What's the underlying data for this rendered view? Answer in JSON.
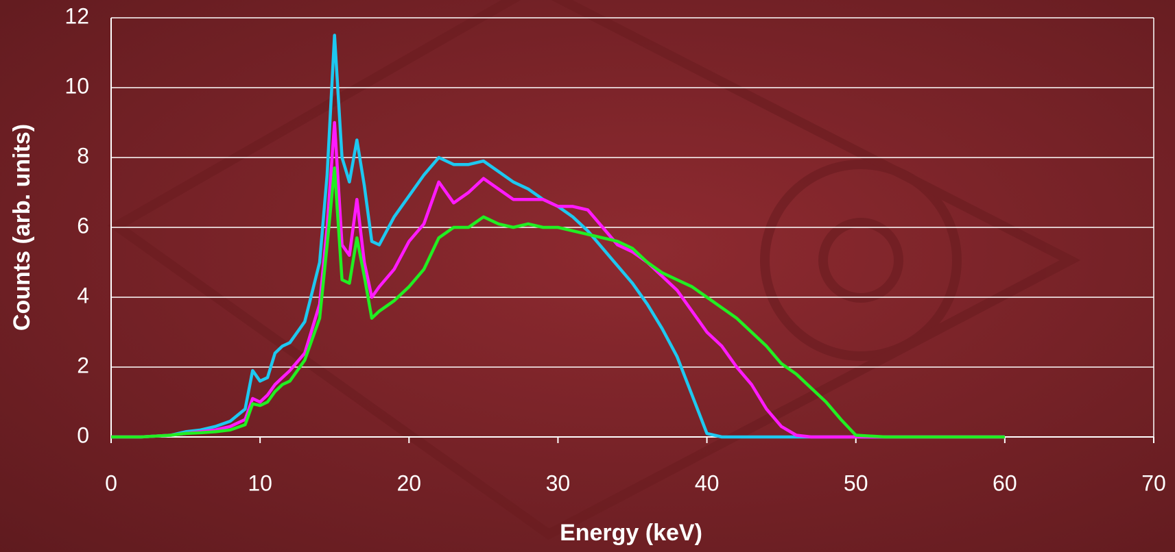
{
  "chart_data": {
    "type": "line",
    "xlabel": "Energy (keV)",
    "ylabel": "Counts (arb. units)",
    "x": [
      0,
      2,
      4,
      5,
      6,
      7,
      8,
      9,
      9.5,
      10,
      10.5,
      11,
      11.5,
      12,
      13,
      14,
      14.5,
      15,
      15.5,
      16,
      16.5,
      17,
      17.5,
      18,
      19,
      20,
      21,
      22,
      23,
      24,
      25,
      26,
      27,
      28,
      29,
      30,
      31,
      32,
      33,
      34,
      35,
      36,
      37,
      38,
      39,
      40,
      41,
      42,
      43,
      44,
      45,
      46,
      47,
      48,
      49,
      50,
      52,
      55,
      60
    ],
    "series": [
      {
        "color": "#1ec8f0",
        "values": [
          0,
          0,
          0.05,
          0.15,
          0.2,
          0.3,
          0.45,
          0.8,
          1.9,
          1.6,
          1.7,
          2.4,
          2.6,
          2.7,
          3.3,
          5,
          7.5,
          11.5,
          8,
          7.3,
          8.5,
          7.2,
          5.6,
          5.5,
          6.3,
          6.9,
          7.5,
          8.0,
          7.8,
          7.8,
          7.9,
          7.6,
          7.3,
          7.1,
          6.8,
          6.6,
          6.3,
          5.9,
          5.4,
          4.9,
          4.4,
          3.8,
          3.1,
          2.3,
          1.2,
          0.1,
          0,
          0,
          0,
          0,
          0,
          0,
          0,
          0,
          0,
          0,
          0,
          0,
          0
        ]
      },
      {
        "color": "#ff1aff",
        "values": [
          0,
          0,
          0.05,
          0.1,
          0.15,
          0.2,
          0.3,
          0.5,
          1.1,
          1.0,
          1.2,
          1.5,
          1.7,
          1.9,
          2.4,
          3.8,
          6,
          9,
          5.5,
          5.2,
          6.8,
          5,
          4,
          4.3,
          4.8,
          5.6,
          6.1,
          7.3,
          6.7,
          7.0,
          7.4,
          7.1,
          6.8,
          6.8,
          6.8,
          6.6,
          6.6,
          6.5,
          6.0,
          5.5,
          5.3,
          5.0,
          4.6,
          4.2,
          3.6,
          3.0,
          2.6,
          2.0,
          1.5,
          0.8,
          0.3,
          0.05,
          0,
          0,
          0,
          0,
          0,
          0,
          0
        ]
      },
      {
        "color": "#22ee22",
        "values": [
          0,
          0,
          0.05,
          0.1,
          0.12,
          0.15,
          0.2,
          0.35,
          0.95,
          0.9,
          1.0,
          1.3,
          1.5,
          1.6,
          2.2,
          3.4,
          5.5,
          7.7,
          4.5,
          4.4,
          5.7,
          4.6,
          3.4,
          3.6,
          3.9,
          4.3,
          4.8,
          5.7,
          6.0,
          6.0,
          6.3,
          6.1,
          6.0,
          6.1,
          6.0,
          6.0,
          5.9,
          5.8,
          5.7,
          5.6,
          5.4,
          5.0,
          4.7,
          4.5,
          4.3,
          4.0,
          3.7,
          3.4,
          3.0,
          2.6,
          2.1,
          1.8,
          1.4,
          1.0,
          0.5,
          0.05,
          0,
          0,
          0
        ]
      }
    ],
    "xlim": [
      0,
      70
    ],
    "xticks": [
      0,
      10,
      20,
      30,
      40,
      50,
      60,
      70
    ],
    "ylim": [
      0,
      12
    ],
    "yticks": [
      0,
      2,
      4,
      6,
      8,
      10,
      12
    ],
    "grid": true
  }
}
